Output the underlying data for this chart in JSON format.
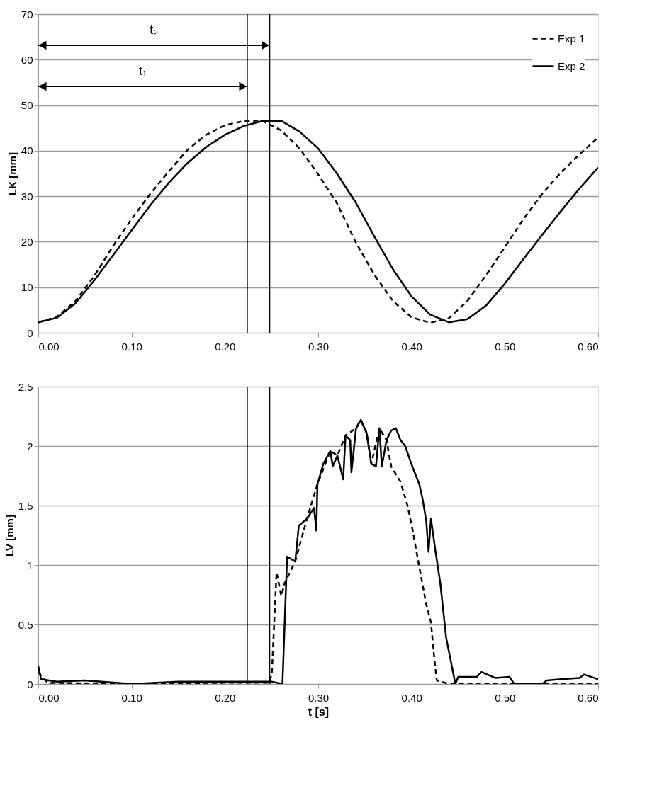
{
  "chart_data": [
    {
      "type": "line",
      "ylabel": "LK [mm]",
      "xlim": [
        0,
        0.6
      ],
      "ylim": [
        0,
        70
      ],
      "xticks": [
        {
          "value": 0,
          "label": "0.00"
        },
        {
          "value": 0.1,
          "label": "0.10"
        },
        {
          "value": 0.2,
          "label": "0.20"
        },
        {
          "value": 0.3,
          "label": "0.30"
        },
        {
          "value": 0.4,
          "label": "0.40"
        },
        {
          "value": 0.5,
          "label": "0.50"
        },
        {
          "value": 0.6,
          "label": "0.60"
        }
      ],
      "yticks": [
        0,
        10,
        20,
        30,
        40,
        50,
        60,
        70
      ],
      "grid": "y",
      "legend": "top right",
      "marker": "none",
      "x": [
        0,
        0.02,
        0.04,
        0.06,
        0.08,
        0.1,
        0.12,
        0.14,
        0.16,
        0.18,
        0.2,
        0.22,
        0.24,
        0.26,
        0.28,
        0.3,
        0.32,
        0.34,
        0.36,
        0.38,
        0.4,
        0.42,
        0.44,
        0.46,
        0.48,
        0.5,
        0.52,
        0.54,
        0.56,
        0.58,
        0.6
      ],
      "series": [
        {
          "name": "Exp 1",
          "color": "#000000",
          "line_style": "dashed",
          "values": [
            2.3,
            3.5,
            7,
            12.5,
            19,
            25,
            30.5,
            35.5,
            40.2,
            43.5,
            45.6,
            46.5,
            46.6,
            44.5,
            40.5,
            34.8,
            28.5,
            20,
            12.8,
            7,
            3.4,
            2.2,
            3.2,
            7,
            12.7,
            18.8,
            25,
            30.5,
            35.2,
            39.2,
            42.9
          ]
        },
        {
          "name": "Exp 2",
          "color": "#000000",
          "line_style": "solid",
          "values": [
            2.3,
            3.3,
            6.5,
            11.5,
            17,
            22.5,
            28,
            33,
            37.3,
            40.8,
            43.5,
            45.4,
            46.5,
            46.6,
            44.2,
            40.5,
            35,
            28.7,
            21.2,
            14,
            8,
            4,
            2.3,
            3,
            6,
            10.8,
            16.2,
            21.5,
            26.7,
            31.7,
            36.3
          ]
        }
      ],
      "ref_lines": [
        {
          "axis": "x",
          "value": 0.224,
          "color": "#000000"
        },
        {
          "axis": "x",
          "value": 0.248,
          "color": "#000000"
        }
      ],
      "annotations": [
        "t₁",
        "t₂"
      ]
    },
    {
      "type": "line",
      "xlabel": "t [s]",
      "ylabel": "LV [mm]",
      "xlim": [
        0,
        0.6
      ],
      "ylim": [
        0,
        2.5
      ],
      "xticks": [
        {
          "value": 0,
          "label": "0.00"
        },
        {
          "value": 0.1,
          "label": "0.10"
        },
        {
          "value": 0.2,
          "label": "0.20"
        },
        {
          "value": 0.3,
          "label": "0.30"
        },
        {
          "value": 0.4,
          "label": "0.40"
        },
        {
          "value": 0.5,
          "label": "0.50"
        },
        {
          "value": 0.6,
          "label": "0.60"
        }
      ],
      "yticks": [
        0,
        0.5,
        1,
        1.5,
        2,
        2.5
      ],
      "grid": "y",
      "marker": "none",
      "series": [
        {
          "color": "#000000",
          "line_style": "dashed",
          "x": [
            0,
            0.01,
            0.1,
            0.2,
            0.248,
            0.2504,
            0.2554,
            0.2604,
            0.2642,
            0.2754,
            0.288,
            0.2992,
            0.313,
            0.3206,
            0.3293,
            0.3406,
            0.3456,
            0.3519,
            0.3569,
            0.3656,
            0.3732,
            0.3782,
            0.3882,
            0.3957,
            0.4008,
            0.407,
            0.4158,
            0.4208,
            0.4246,
            0.4271,
            0.44,
            0.5,
            0.6
          ],
          "values": [
            0.1,
            0.01,
            0.0,
            0.01,
            0.01,
            0.1,
            0.94,
            0.74,
            0.85,
            1.03,
            1.39,
            1.68,
            1.96,
            1.92,
            2.09,
            2.15,
            2.22,
            2.11,
            1.85,
            2.15,
            2.05,
            1.83,
            1.7,
            1.5,
            1.31,
            1.04,
            0.67,
            0.52,
            0.2,
            0.03,
            0.0,
            0.0,
            0.0
          ]
        },
        {
          "color": "#000000",
          "line_style": "solid",
          "x": [
            0,
            0.003,
            0.02,
            0.05,
            0.1,
            0.15,
            0.2,
            0.25,
            0.2617,
            0.2667,
            0.2754,
            0.2792,
            0.288,
            0.2955,
            0.298,
            0.2992,
            0.3055,
            0.313,
            0.3156,
            0.3206,
            0.3268,
            0.3293,
            0.3343,
            0.3356,
            0.3406,
            0.3456,
            0.3519,
            0.3569,
            0.3619,
            0.3656,
            0.3682,
            0.3732,
            0.3782,
            0.3832,
            0.3882,
            0.3932,
            0.4008,
            0.4083,
            0.412,
            0.4158,
            0.4183,
            0.4208,
            0.4258,
            0.4308,
            0.4371,
            0.447,
            0.45,
            0.47,
            0.475,
            0.49,
            0.505,
            0.51,
            0.54,
            0.545,
            0.56,
            0.58,
            0.585,
            0.6
          ],
          "values": [
            0.15,
            0.04,
            0.02,
            0.03,
            0.0,
            0.02,
            0.02,
            0.02,
            0.0,
            1.07,
            1.03,
            1.33,
            1.39,
            1.48,
            1.29,
            1.68,
            1.85,
            1.96,
            1.83,
            1.92,
            1.72,
            2.09,
            2.05,
            1.78,
            2.15,
            2.22,
            2.11,
            1.85,
            1.83,
            2.15,
            1.83,
            2.05,
            2.13,
            2.15,
            2.05,
            2.0,
            1.83,
            1.68,
            1.55,
            1.37,
            1.11,
            1.39,
            1.11,
            0.85,
            0.39,
            0.0,
            0.06,
            0.06,
            0.1,
            0.05,
            0.06,
            0.0,
            0.0,
            0.03,
            0.04,
            0.05,
            0.08,
            0.04
          ]
        }
      ],
      "ref_lines": [
        {
          "axis": "x",
          "value": 0.224,
          "color": "#000000"
        },
        {
          "axis": "x",
          "value": 0.248,
          "color": "#000000"
        }
      ]
    }
  ]
}
